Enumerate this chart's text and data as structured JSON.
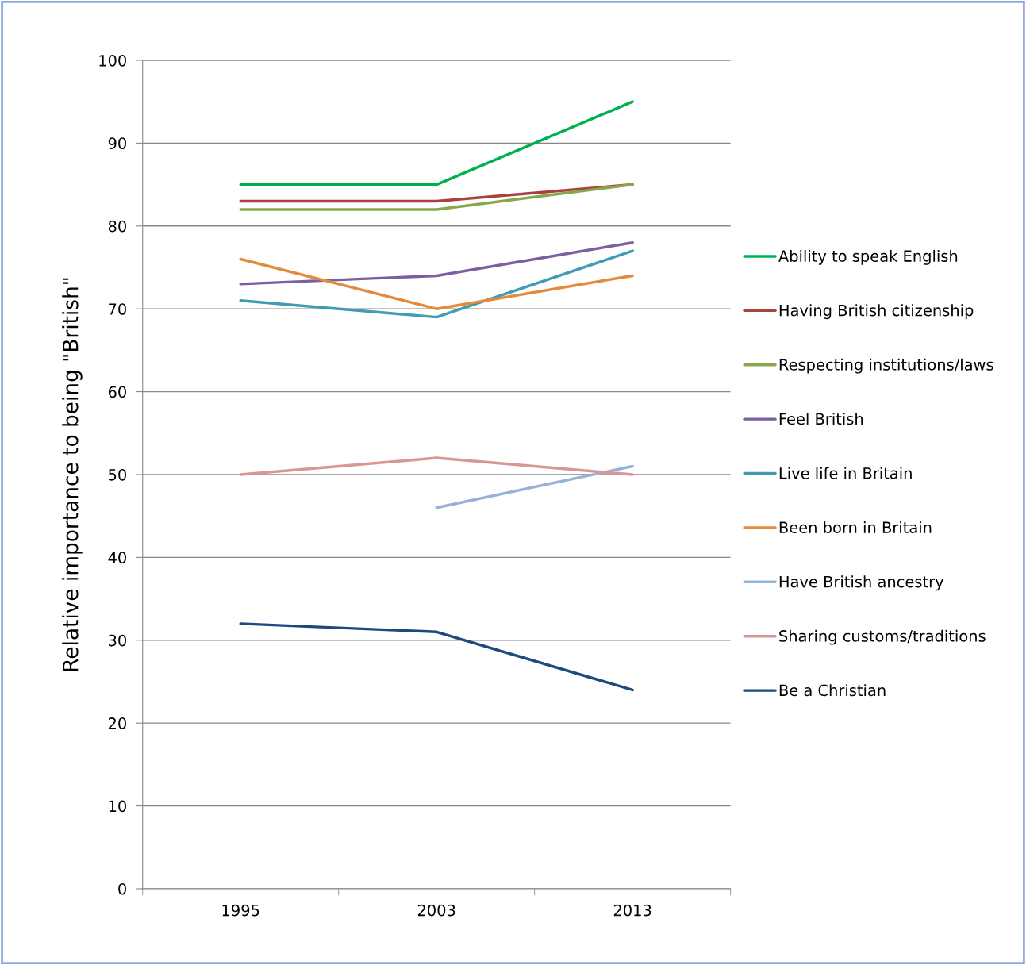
{
  "chart_data": {
    "type": "line",
    "ylabel": "Relative importance to being \"British\"",
    "categories": [
      "1995",
      "2003",
      "2013"
    ],
    "series": [
      {
        "name": "Ability to speak English",
        "color": "#00b050",
        "values": [
          85,
          85,
          95
        ]
      },
      {
        "name": "Having British citizenship",
        "color": "#a8423f",
        "values": [
          83,
          83,
          85
        ]
      },
      {
        "name": "Respecting institutions/laws",
        "color": "#86a84a",
        "values": [
          82,
          82,
          85
        ]
      },
      {
        "name": "Feel British",
        "color": "#7b5fa0",
        "values": [
          73,
          74,
          78
        ]
      },
      {
        "name": "Live life in Britain",
        "color": "#3f9cb3",
        "values": [
          71,
          69,
          77
        ]
      },
      {
        "name": "Been born in Britain",
        "color": "#e48a3a",
        "values": [
          76,
          70,
          74
        ]
      },
      {
        "name": "Have British ancestry",
        "color": "#95b3d7",
        "values": [
          null,
          46,
          51
        ]
      },
      {
        "name": "Sharing customs/traditions",
        "color": "#d99694",
        "values": [
          50,
          52,
          50
        ]
      },
      {
        "name": "Be a Christian",
        "color": "#1f497d",
        "values": [
          32,
          31,
          24
        ]
      }
    ],
    "ylim": [
      0,
      100
    ],
    "yticks": [
      0,
      10,
      20,
      30,
      40,
      50,
      60,
      70,
      80,
      90,
      100
    ],
    "grid": "y",
    "legend": "right",
    "marker": "none",
    "line_style": "solid"
  }
}
